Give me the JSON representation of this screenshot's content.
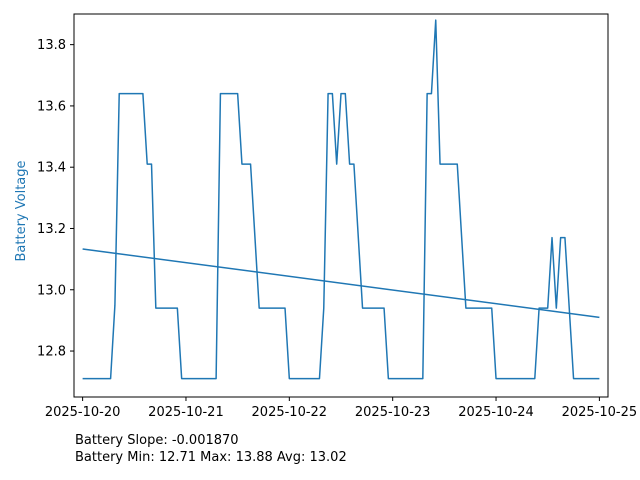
{
  "colors": {
    "series": "#1f77b4",
    "axis_label": "#1f77b4"
  },
  "chart_data": {
    "type": "line",
    "title": "",
    "xlabel": "",
    "ylabel": "Battery Voltage",
    "xlim": [
      "2025-10-19T22:00",
      "2025-10-25T02:00"
    ],
    "ylim": [
      12.65,
      13.9
    ],
    "xticks": [
      "2025-10-20",
      "2025-10-21",
      "2025-10-22",
      "2025-10-23",
      "2025-10-24",
      "2025-10-25"
    ],
    "yticks": [
      12.8,
      13.0,
      13.2,
      13.4,
      13.6,
      13.8
    ],
    "grid": false,
    "series": [
      {
        "name": "",
        "x": [
          "2025-10-20T00:00",
          "2025-10-20T06:30",
          "2025-10-20T07:30",
          "2025-10-20T08:30",
          "2025-10-20T14:00",
          "2025-10-20T15:00",
          "2025-10-20T16:00",
          "2025-10-20T17:00",
          "2025-10-20T22:00",
          "2025-10-20T23:00",
          "2025-10-21T07:00",
          "2025-10-21T08:00",
          "2025-10-21T12:00",
          "2025-10-21T13:00",
          "2025-10-21T15:00",
          "2025-10-21T17:00",
          "2025-10-21T23:00",
          "2025-10-22T00:00",
          "2025-10-22T07:00",
          "2025-10-22T08:00",
          "2025-10-22T09:00",
          "2025-10-22T10:00",
          "2025-10-22T11:00",
          "2025-10-22T12:00",
          "2025-10-22T13:00",
          "2025-10-22T14:00",
          "2025-10-22T15:00",
          "2025-10-22T17:00",
          "2025-10-22T22:00",
          "2025-10-22T23:00",
          "2025-10-23T07:00",
          "2025-10-23T08:00",
          "2025-10-23T09:00",
          "2025-10-23T10:00",
          "2025-10-23T11:00",
          "2025-10-23T15:00",
          "2025-10-23T17:00",
          "2025-10-23T23:00",
          "2025-10-24T00:00",
          "2025-10-24T09:00",
          "2025-10-24T10:00",
          "2025-10-24T12:00",
          "2025-10-24T13:00",
          "2025-10-24T14:00",
          "2025-10-24T15:00",
          "2025-10-24T16:00",
          "2025-10-24T17:00",
          "2025-10-24T18:00",
          "2025-10-24T20:00",
          "2025-10-25T00:00"
        ],
        "values": [
          12.71,
          12.71,
          12.95,
          13.64,
          13.64,
          13.41,
          13.41,
          12.94,
          12.94,
          12.71,
          12.71,
          13.64,
          13.64,
          13.41,
          13.41,
          12.94,
          12.94,
          12.71,
          12.71,
          12.94,
          13.64,
          13.64,
          13.41,
          13.64,
          13.64,
          13.41,
          13.41,
          12.94,
          12.94,
          12.71,
          12.71,
          13.64,
          13.64,
          13.88,
          13.41,
          13.41,
          12.94,
          12.94,
          12.71,
          12.71,
          12.94,
          12.94,
          13.17,
          12.94,
          13.17,
          13.17,
          12.94,
          12.71,
          12.71,
          12.71
        ]
      },
      {
        "name": "",
        "x": [
          "2025-10-20T00:00",
          "2025-10-25T00:00"
        ],
        "values": [
          13.133,
          12.91
        ]
      }
    ]
  },
  "stats": {
    "slope_line": "Battery Slope: -0.001870",
    "range_line": "Battery Min: 12.71 Max: 13.88 Avg: 13.02"
  }
}
